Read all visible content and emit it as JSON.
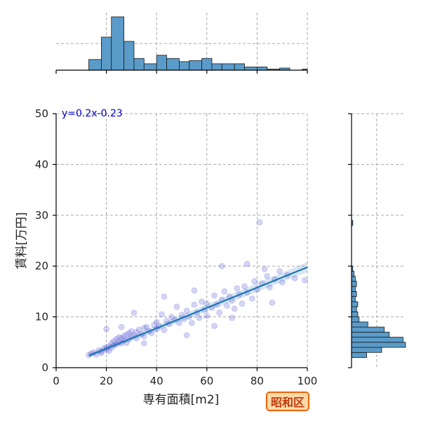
{
  "chart_data": {
    "type": "scatter",
    "xlabel": "専有面積[m2]",
    "ylabel": "賃料[万円]",
    "xlim": [
      0,
      100
    ],
    "ylim": [
      0,
      50
    ],
    "xticks": [
      0,
      20,
      40,
      60,
      80,
      100
    ],
    "yticks": [
      0,
      10,
      20,
      30,
      40,
      50
    ],
    "grid": true,
    "regression": {
      "slope": 0.2,
      "intercept": -0.23,
      "label": "y=0.2x-0.23",
      "x_range": [
        13,
        100
      ]
    },
    "points": [
      [
        13,
        2.5
      ],
      [
        14,
        2.8
      ],
      [
        15,
        3.0
      ],
      [
        16,
        2.6
      ],
      [
        17,
        3.4
      ],
      [
        18,
        3.2
      ],
      [
        18,
        2.9
      ],
      [
        19,
        3.8
      ],
      [
        20,
        3.5
      ],
      [
        20,
        4.0
      ],
      [
        21,
        3.3
      ],
      [
        21,
        4.2
      ],
      [
        22,
        3.9
      ],
      [
        22,
        4.8
      ],
      [
        23,
        4.4
      ],
      [
        23,
        5.2
      ],
      [
        24,
        4.6
      ],
      [
        24,
        5.6
      ],
      [
        25,
        5.0
      ],
      [
        25,
        6.0
      ],
      [
        26,
        4.8
      ],
      [
        26,
        5.8
      ],
      [
        27,
        6.2
      ],
      [
        27,
        5.4
      ],
      [
        28,
        6.5
      ],
      [
        28,
        4.9
      ],
      [
        29,
        6.8
      ],
      [
        29,
        5.6
      ],
      [
        30,
        6.1
      ],
      [
        30,
        7.2
      ],
      [
        31,
        6.4
      ],
      [
        32,
        7.0
      ],
      [
        32,
        5.8
      ],
      [
        33,
        7.5
      ],
      [
        34,
        6.6
      ],
      [
        35,
        7.8
      ],
      [
        35,
        6.2
      ],
      [
        36,
        8.0
      ],
      [
        37,
        7.2
      ],
      [
        38,
        6.8
      ],
      [
        39,
        8.4
      ],
      [
        40,
        7.6
      ],
      [
        40,
        9.0
      ],
      [
        41,
        8.2
      ],
      [
        42,
        10.5
      ],
      [
        43,
        7.4
      ],
      [
        44,
        9.2
      ],
      [
        45,
        8.6
      ],
      [
        46,
        10.0
      ],
      [
        47,
        9.4
      ],
      [
        48,
        12.0
      ],
      [
        49,
        8.8
      ],
      [
        50,
        10.4
      ],
      [
        51,
        9.6
      ],
      [
        52,
        11.2
      ],
      [
        53,
        10.0
      ],
      [
        54,
        8.8
      ],
      [
        55,
        12.4
      ],
      [
        56,
        10.8
      ],
      [
        57,
        9.8
      ],
      [
        58,
        13.0
      ],
      [
        59,
        11.4
      ],
      [
        60,
        10.2
      ],
      [
        60,
        12.6
      ],
      [
        62,
        11.8
      ],
      [
        63,
        14.2
      ],
      [
        64,
        12.4
      ],
      [
        65,
        10.8
      ],
      [
        66,
        13.4
      ],
      [
        67,
        15.0
      ],
      [
        68,
        12.2
      ],
      [
        69,
        14.0
      ],
      [
        70,
        13.2
      ],
      [
        71,
        11.6
      ],
      [
        72,
        15.6
      ],
      [
        73,
        14.4
      ],
      [
        74,
        12.6
      ],
      [
        75,
        16.0
      ],
      [
        76,
        14.8
      ],
      [
        78,
        13.6
      ],
      [
        79,
        17.0
      ],
      [
        80,
        15.4
      ],
      [
        82,
        16.6
      ],
      [
        84,
        18.0
      ],
      [
        85,
        15.8
      ],
      [
        87,
        17.4
      ],
      [
        89,
        19.0
      ],
      [
        90,
        16.8
      ],
      [
        92,
        18.2
      ],
      [
        95,
        17.6
      ],
      [
        99,
        17.2
      ],
      [
        81,
        28.6
      ],
      [
        20,
        7.6
      ],
      [
        31,
        10.8
      ],
      [
        55,
        15.2
      ],
      [
        66,
        20.0
      ],
      [
        76,
        20.4
      ],
      [
        83,
        19.4
      ],
      [
        63,
        8.2
      ],
      [
        43,
        14.0
      ],
      [
        26,
        8.0
      ],
      [
        35,
        4.8
      ],
      [
        52,
        6.4
      ],
      [
        70,
        9.8
      ],
      [
        86,
        12.8
      ]
    ],
    "marginal_x": {
      "bin_width": 5,
      "bins": [
        {
          "x0": 13,
          "x1": 18,
          "count": 10
        },
        {
          "x0": 18,
          "x1": 22,
          "count": 31
        },
        {
          "x0": 22,
          "x1": 27,
          "count": 50
        },
        {
          "x0": 27,
          "x1": 31,
          "count": 27
        },
        {
          "x0": 31,
          "x1": 35,
          "count": 11
        },
        {
          "x0": 35,
          "x1": 40,
          "count": 6
        },
        {
          "x0": 40,
          "x1": 44,
          "count": 14
        },
        {
          "x0": 44,
          "x1": 49,
          "count": 11
        },
        {
          "x0": 49,
          "x1": 53,
          "count": 8
        },
        {
          "x0": 53,
          "x1": 58,
          "count": 9
        },
        {
          "x0": 58,
          "x1": 62,
          "count": 11
        },
        {
          "x0": 62,
          "x1": 66,
          "count": 6
        },
        {
          "x0": 66,
          "x1": 71,
          "count": 6
        },
        {
          "x0": 71,
          "x1": 75,
          "count": 6
        },
        {
          "x0": 75,
          "x1": 80,
          "count": 3
        },
        {
          "x0": 80,
          "x1": 84,
          "count": 3
        },
        {
          "x0": 84,
          "x1": 89,
          "count": 1
        },
        {
          "x0": 89,
          "x1": 93,
          "count": 2
        },
        {
          "x0": 93,
          "x1": 98,
          "count": 0
        },
        {
          "x0": 98,
          "x1": 100,
          "count": 1
        }
      ]
    },
    "marginal_y": {
      "bins": [
        {
          "y0": 2.0,
          "y1": 3.0,
          "count": 12
        },
        {
          "y0": 3.0,
          "y1": 4.0,
          "count": 24
        },
        {
          "y0": 4.0,
          "y1": 5.0,
          "count": 43
        },
        {
          "y0": 5.0,
          "y1": 6.0,
          "count": 41
        },
        {
          "y0": 6.0,
          "y1": 7.0,
          "count": 30
        },
        {
          "y0": 7.0,
          "y1": 8.0,
          "count": 26
        },
        {
          "y0": 8.0,
          "y1": 9.0,
          "count": 13
        },
        {
          "y0": 9.0,
          "y1": 10.0,
          "count": 6
        },
        {
          "y0": 10.0,
          "y1": 11.0,
          "count": 5
        },
        {
          "y0": 11.0,
          "y1": 12.0,
          "count": 4
        },
        {
          "y0": 12.0,
          "y1": 13.0,
          "count": 5
        },
        {
          "y0": 13.0,
          "y1": 14.0,
          "count": 3
        },
        {
          "y0": 14.0,
          "y1": 15.0,
          "count": 4
        },
        {
          "y0": 15.0,
          "y1": 16.0,
          "count": 3
        },
        {
          "y0": 16.0,
          "y1": 17.0,
          "count": 4
        },
        {
          "y0": 17.0,
          "y1": 18.0,
          "count": 3
        },
        {
          "y0": 18.0,
          "y1": 19.0,
          "count": 2
        },
        {
          "y0": 19.0,
          "y1": 20.0,
          "count": 1
        },
        {
          "y0": 28.0,
          "y1": 29.0,
          "count": 1
        }
      ]
    }
  },
  "badge": {
    "label": "昭和区",
    "border_color": "#e8650b",
    "fill_color": "#ffd9a8",
    "text_color": "#c0390b"
  },
  "colors": {
    "bar": "#5a9bc9",
    "regression": "#1f77b4",
    "points": "#3a3acd",
    "equation": "#0000cc"
  }
}
